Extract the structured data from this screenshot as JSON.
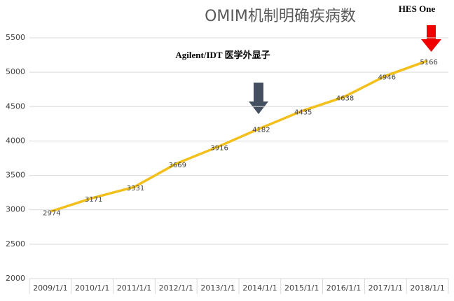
{
  "chart_data": {
    "type": "line",
    "title": "OMIM机制明确疾病数",
    "categories": [
      "2009/1/1",
      "2010/1/1",
      "2011/1/1",
      "2012/1/1",
      "2013/1/1",
      "2014/1/1",
      "2015/1/1",
      "2016/1/1",
      "2017/1/1",
      "2018/1/1"
    ],
    "series": [
      {
        "name": "OMIM",
        "color": "#f2bf1b",
        "values": [
          2974,
          3171,
          3331,
          3669,
          3916,
          4182,
          4435,
          4638,
          4946,
          5166
        ]
      }
    ],
    "ylim": [
      2000,
      5500
    ],
    "yticks": [
      2000,
      2500,
      3000,
      3500,
      4000,
      4500,
      5000,
      5500
    ],
    "grid": true,
    "annotations": [
      "Agilent/IDT 医学外显子",
      "HES One"
    ]
  }
}
